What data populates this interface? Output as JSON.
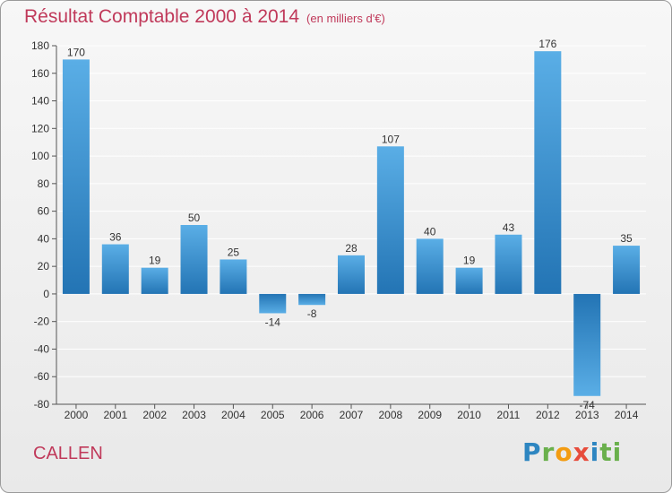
{
  "header": {
    "title": "Résultat Comptable 2000 à 2014",
    "subtitle": "(en milliers d'€)"
  },
  "commune": "CALLEN",
  "logo": [
    "P",
    "r",
    "o",
    "x",
    "i",
    "ti"
  ],
  "colors": {
    "title": "#c0395a",
    "bar_light": "#5aaee6",
    "bar_dark": "#2374b4",
    "grid": "#ffffff"
  },
  "chart_data": {
    "type": "bar",
    "categories": [
      "2000",
      "2001",
      "2002",
      "2003",
      "2004",
      "2005",
      "2006",
      "2007",
      "2008",
      "2009",
      "2010",
      "2011",
      "2012",
      "2013",
      "2014"
    ],
    "values": [
      170,
      36,
      19,
      50,
      25,
      -14,
      -8,
      28,
      107,
      40,
      19,
      43,
      176,
      -74,
      35
    ],
    "ylim": [
      -80,
      180
    ],
    "yticks": [
      -80,
      -60,
      -40,
      -20,
      0,
      20,
      40,
      60,
      80,
      100,
      120,
      140,
      160,
      180
    ],
    "grid": true,
    "legend": "none"
  }
}
